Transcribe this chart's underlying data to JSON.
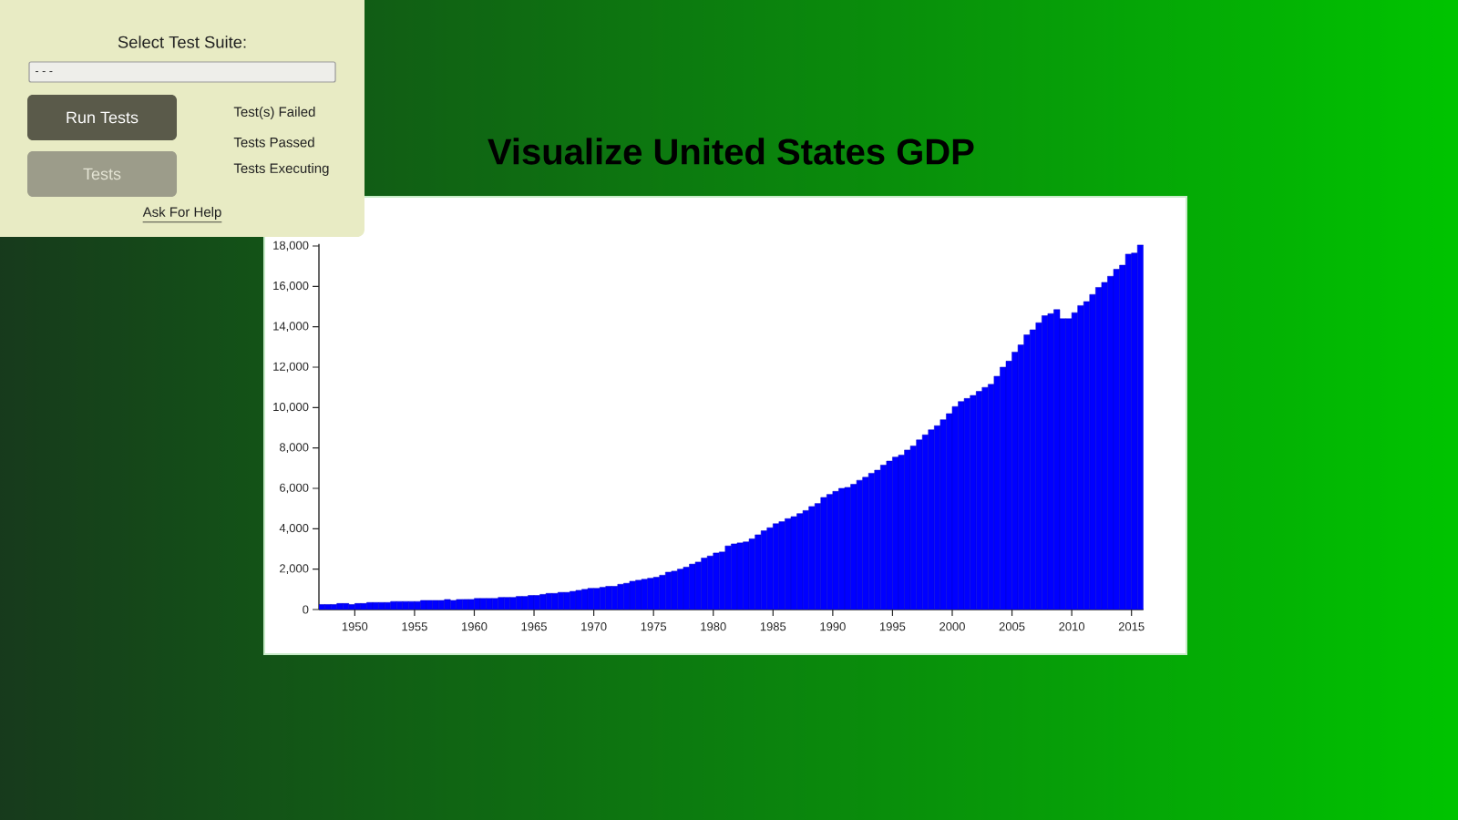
{
  "chart_data": [
    {
      "type": "bar",
      "title": "Visualize United States GDP",
      "color": "#0000ff",
      "x": [
        "1947-01",
        "1947-07",
        "1948-01",
        "1948-07",
        "1949-01",
        "1949-07",
        "1950-01",
        "1950-07",
        "1951-01",
        "1951-07",
        "1952-01",
        "1952-07",
        "1953-01",
        "1953-07",
        "1954-01",
        "1954-07",
        "1955-01",
        "1955-07",
        "1956-01",
        "1956-07",
        "1957-01",
        "1957-07",
        "1958-01",
        "1958-07",
        "1959-01",
        "1959-07",
        "1960-01",
        "1960-07",
        "1961-01",
        "1961-07",
        "1962-01",
        "1962-07",
        "1963-01",
        "1963-07",
        "1964-01",
        "1964-07",
        "1965-01",
        "1965-07",
        "1966-01",
        "1966-07",
        "1967-01",
        "1967-07",
        "1968-01",
        "1968-07",
        "1969-01",
        "1969-07",
        "1970-01",
        "1970-07",
        "1971-01",
        "1971-07",
        "1972-01",
        "1972-07",
        "1973-01",
        "1973-07",
        "1974-01",
        "1974-07",
        "1975-01",
        "1975-07",
        "1976-01",
        "1976-07",
        "1977-01",
        "1977-07",
        "1978-01",
        "1978-07",
        "1979-01",
        "1979-07",
        "1980-01",
        "1980-07",
        "1981-01",
        "1981-07",
        "1982-01",
        "1982-07",
        "1983-01",
        "1983-07",
        "1984-01",
        "1984-07",
        "1985-01",
        "1985-07",
        "1986-01",
        "1986-07",
        "1987-01",
        "1987-07",
        "1988-01",
        "1988-07",
        "1989-01",
        "1989-07",
        "1990-01",
        "1990-07",
        "1991-01",
        "1991-07",
        "1992-01",
        "1992-07",
        "1993-01",
        "1993-07",
        "1994-01",
        "1994-07",
        "1995-01",
        "1995-07",
        "1996-01",
        "1996-07",
        "1997-01",
        "1997-07",
        "1998-01",
        "1998-07",
        "1999-01",
        "1999-07",
        "2000-01",
        "2000-07",
        "2001-01",
        "2001-07",
        "2002-01",
        "2002-07",
        "2003-01",
        "2003-07",
        "2004-01",
        "2004-07",
        "2005-01",
        "2005-07",
        "2006-01",
        "2006-07",
        "2007-01",
        "2007-07",
        "2008-01",
        "2008-07",
        "2009-01",
        "2009-07",
        "2010-01",
        "2010-07",
        "2011-01",
        "2011-07",
        "2012-01",
        "2012-07",
        "2013-01",
        "2013-07",
        "2014-01",
        "2014-07",
        "2015-01",
        "2015-07"
      ],
      "values": [
        250,
        250,
        250,
        300,
        300,
        250,
        300,
        300,
        350,
        350,
        350,
        350,
        400,
        400,
        400,
        400,
        400,
        450,
        450,
        450,
        450,
        500,
        450,
        500,
        500,
        500,
        550,
        550,
        550,
        550,
        600,
        600,
        600,
        650,
        650,
        700,
        700,
        750,
        800,
        800,
        850,
        850,
        900,
        950,
        1000,
        1050,
        1050,
        1100,
        1150,
        1150,
        1250,
        1300,
        1400,
        1450,
        1500,
        1550,
        1600,
        1700,
        1850,
        1900,
        2000,
        2100,
        2250,
        2350,
        2550,
        2650,
        2800,
        2850,
        3150,
        3250,
        3300,
        3350,
        3500,
        3700,
        3900,
        4050,
        4250,
        4350,
        4500,
        4600,
        4750,
        4900,
        5100,
        5250,
        5550,
        5700,
        5850,
        6000,
        6050,
        6200,
        6400,
        6550,
        6750,
        6900,
        7150,
        7350,
        7550,
        7650,
        7900,
        8100,
        8400,
        8650,
        8900,
        9100,
        9400,
        9700,
        10050,
        10300,
        10450,
        10600,
        10800,
        11000,
        11150,
        11550,
        12000,
        12300,
        12750,
        13100,
        13600,
        13850,
        14200,
        14550,
        14650,
        14850,
        14400,
        14400,
        14700,
        15050,
        15250,
        15600,
        15950,
        16200,
        16500,
        16850,
        17050,
        17600,
        17650,
        18050
      ],
      "xlim": [
        "1947-01",
        "2016-01"
      ],
      "xticks": [
        "1950",
        "1955",
        "1960",
        "1965",
        "1970",
        "1975",
        "1980",
        "1985",
        "1990",
        "1995",
        "2000",
        "2005",
        "2010",
        "2015"
      ],
      "ylim": [
        0,
        18100
      ],
      "yticks": [
        0,
        {
          "value": 2000,
          "label": "2,000"
        },
        {
          "value": 4000,
          "label": "4,000"
        },
        {
          "value": 6000,
          "label": "6,000"
        },
        {
          "value": 8000,
          "label": "8,000"
        },
        {
          "value": 10000,
          "label": "10,000"
        },
        {
          "value": 12000,
          "label": "12,000"
        },
        {
          "value": 14000,
          "label": "14,000"
        },
        {
          "value": 16000,
          "label": "16,000"
        },
        {
          "value": 18000,
          "label": "18,000"
        }
      ]
    },
    {
      "type": "other",
      "annotations": [
        "Select Test Suite:",
        "- - -",
        "Run Tests",
        "Tests",
        "Test(s) Failed",
        "Tests Passed",
        "Tests Executing",
        "Ask For Help"
      ]
    }
  ]
}
